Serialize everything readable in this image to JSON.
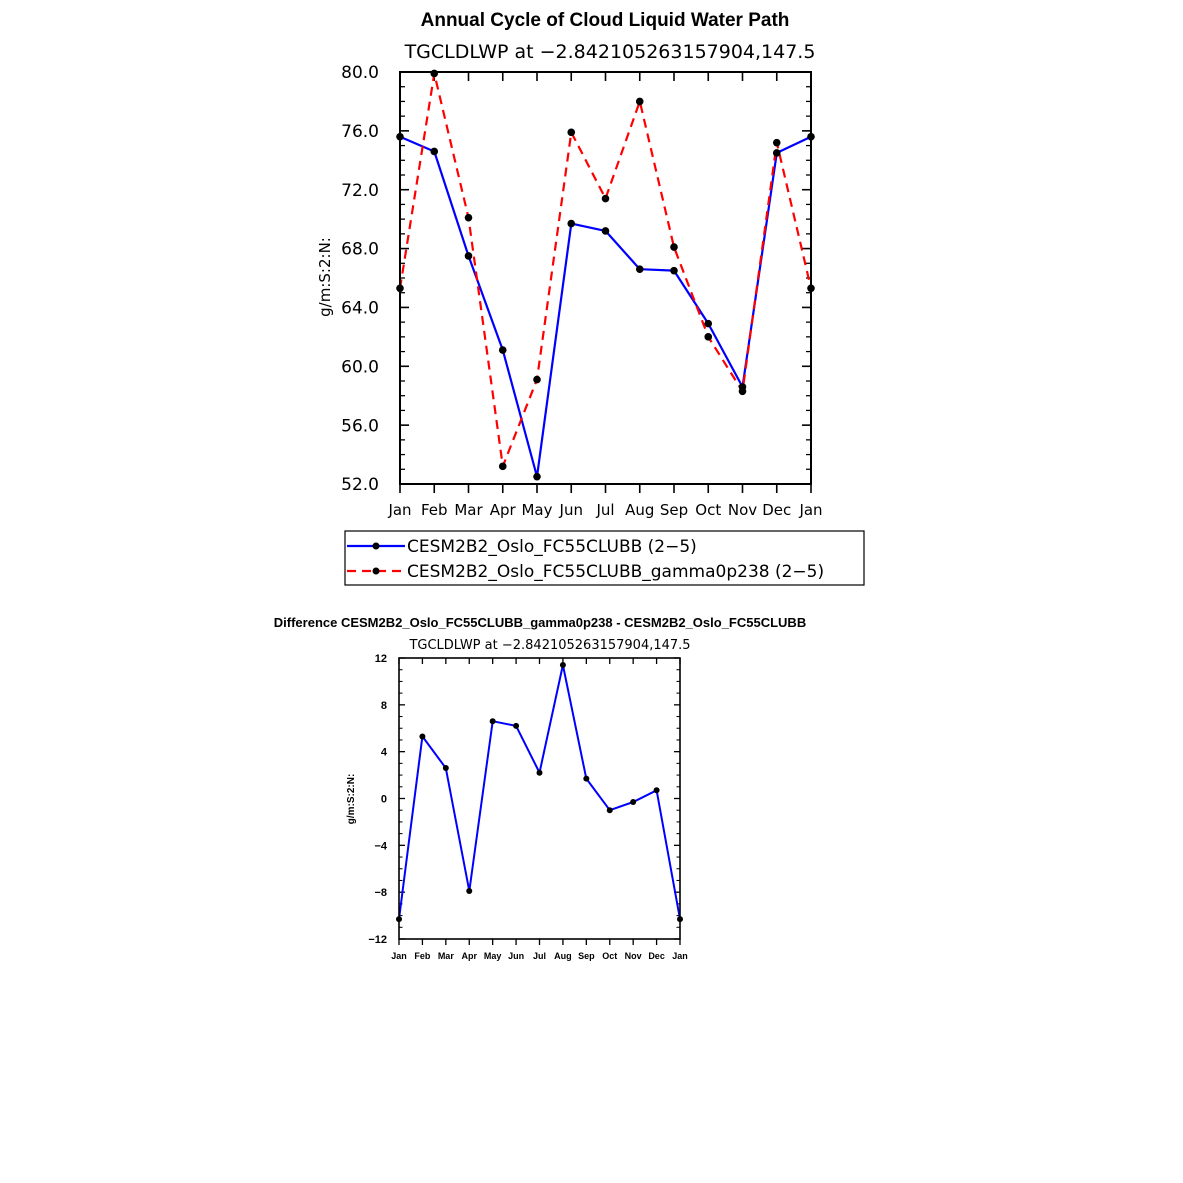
{
  "chart_data": [
    {
      "type": "line",
      "title": "Annual Cycle of Cloud Liquid Water Path",
      "subtitle": "TGCLDLWP at −2.842105263157904,147.5",
      "ylabel": "g/m:S:2:N:",
      "xlabel": "",
      "ylim": [
        52.0,
        80.0
      ],
      "yticks": [
        "52.0",
        "56.0",
        "60.0",
        "64.0",
        "68.0",
        "72.0",
        "76.0",
        "80.0"
      ],
      "categories": [
        "Jan",
        "Feb",
        "Mar",
        "Apr",
        "May",
        "Jun",
        "Jul",
        "Aug",
        "Sep",
        "Oct",
        "Nov",
        "Dec",
        "Jan"
      ],
      "series": [
        {
          "name": "CESM2B2_Oslo_FC55CLUBB (2−5)",
          "color": "#0000ff",
          "dash": "solid",
          "values": [
            75.6,
            74.6,
            67.5,
            61.1,
            52.5,
            69.7,
            69.2,
            66.6,
            66.5,
            62.9,
            58.6,
            74.5,
            75.6
          ]
        },
        {
          "name": "CESM2B2_Oslo_FC55CLUBB_gamma0p238 (2−5)",
          "color": "#ff0000",
          "dash": "dashed",
          "values": [
            65.3,
            79.9,
            70.1,
            53.2,
            59.1,
            75.9,
            71.4,
            78.0,
            68.1,
            62.0,
            58.3,
            75.2,
            65.3
          ]
        }
      ],
      "legend": "below"
    },
    {
      "type": "line",
      "title": "Difference CESM2B2_Oslo_FC55CLUBB_gamma0p238 - CESM2B2_Oslo_FC55CLUBB",
      "subtitle": "TGCLDLWP at −2.842105263157904,147.5",
      "ylabel": "g/m:S:2:N:",
      "xlabel": "",
      "ylim": [
        -12,
        12
      ],
      "yticks": [
        "−12",
        "−8",
        "−4",
        "0",
        "4",
        "8",
        "12"
      ],
      "categories": [
        "Jan",
        "Feb",
        "Mar",
        "Apr",
        "May",
        "Jun",
        "Jul",
        "Aug",
        "Sep",
        "Oct",
        "Nov",
        "Dec",
        "Jan"
      ],
      "series": [
        {
          "name": "difference",
          "color": "#0000ff",
          "dash": "solid",
          "values": [
            -10.3,
            5.3,
            2.6,
            -7.9,
            6.6,
            6.2,
            2.2,
            11.4,
            1.7,
            -1.0,
            -0.3,
            0.7,
            -10.3
          ]
        }
      ]
    }
  ]
}
